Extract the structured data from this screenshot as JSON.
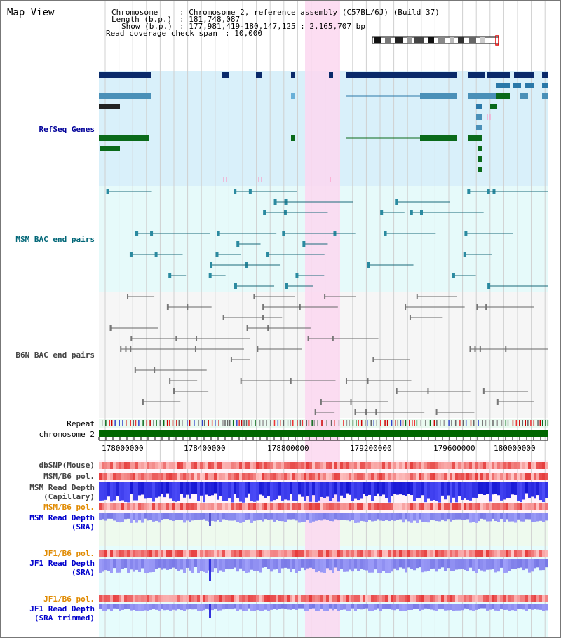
{
  "page": {
    "title": "Map View"
  },
  "info": {
    "chromosome_label": "Chromosome",
    "chromosome_value": ": Chromosome 2, reference assembly (C57BL/6J) (Build 37)",
    "length_label": "Length (b.p.)",
    "length_value": ": 181,748,087",
    "show_label": "Show (b.p.)",
    "show_value": ": 177,981,419-180,147,125 : 2,165,707 bp",
    "coverage_label": "Read coverage check span",
    "coverage_value": ": 10,000"
  },
  "tracks": {
    "refseq": "RefSeq Genes",
    "msm_bac": "MSM BAC end pairs",
    "b6n_bac": "B6N BAC end pairs",
    "repeat": "Repeat",
    "chromosome": "chromosome 2",
    "dbsnp": "dbSNP(Mouse)",
    "msm_b6_pol_1": "MSM/B6 pol.",
    "msm_depth_cap": "MSM Read Depth\n(Capillary)",
    "msm_b6_pol_2": "MSM/B6 pol.",
    "msm_depth_sra": "MSM Read Depth\n(SRA)",
    "jf1_b6_pol_1": "JF1/B6 pol.",
    "jf1_depth_sra": "JF1 Read Depth\n(SRA)",
    "jf1_b6_pol_2": "JF1/B6 pol.",
    "jf1_depth_trim": "JF1 Read Depth\n(SRA trimmed)"
  },
  "axis": {
    "ticks": [
      "178000000",
      "178400000",
      "178800000",
      "179200000",
      "179600000",
      "180000000"
    ]
  },
  "colors": {
    "refseq_label": "#000099",
    "msm_label": "#006677",
    "b6n_label": "#444444",
    "pol_label_orange": "#e08a00",
    "depth_label_blue": "#0000cc",
    "highlight": "#fbd7f0",
    "chromosome_green": "#006600"
  }
}
